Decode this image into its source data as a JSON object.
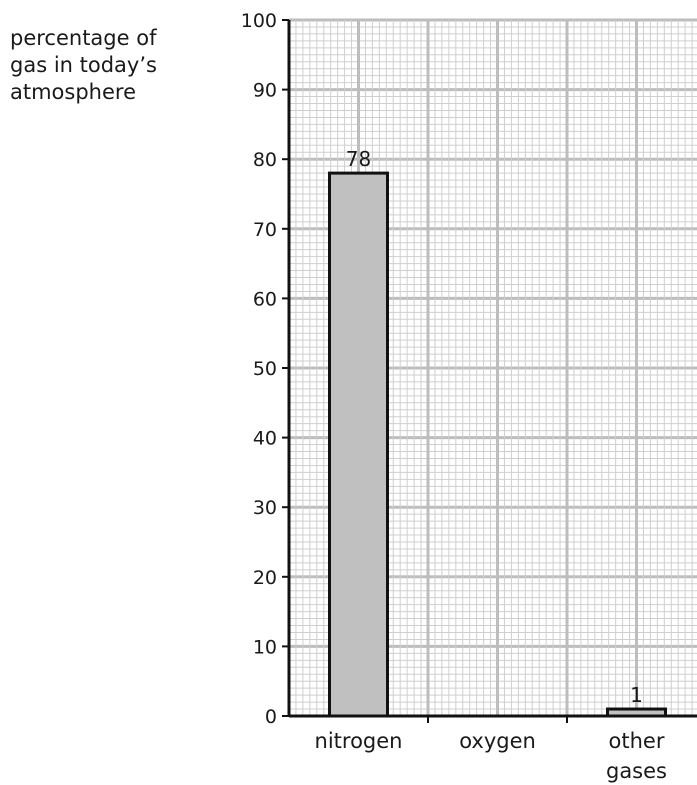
{
  "chart_data": {
    "type": "bar",
    "categories": [
      {
        "lines": [
          "nitrogen"
        ]
      },
      {
        "lines": [
          "oxygen"
        ]
      },
      {
        "lines": [
          "other",
          "gases"
        ]
      }
    ],
    "values": [
      78,
      null,
      1
    ],
    "data_labels": [
      "78",
      "",
      "1"
    ],
    "ylabel_lines": [
      "percentage of",
      "gas in today’s",
      "atmosphere"
    ],
    "xlabel": "",
    "ylim": [
      0,
      100
    ],
    "yticks": [
      0,
      10,
      20,
      30,
      40,
      50,
      60,
      70,
      80,
      90,
      100
    ],
    "grid": true,
    "bar_color": "#c0c0c0",
    "bar_edge_color": "#111111",
    "grid_minor_color": "#cfcfcf",
    "grid_major_color": "#bdbdbd"
  }
}
